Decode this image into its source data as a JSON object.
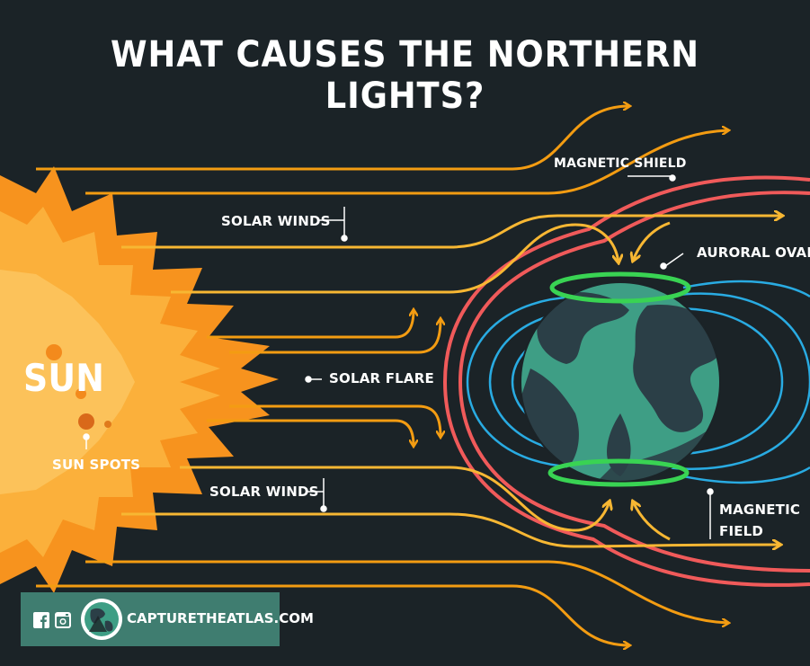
{
  "title": "WHAT CAUSES THE NORTHERN LIGHTS?",
  "labels": {
    "sun": "SUN",
    "sun_spots": "SUN SPOTS",
    "solar_winds_top": "SOLAR WINDS",
    "solar_flare": "SOLAR FLARE",
    "solar_winds_bottom": "SOLAR WINDS",
    "magnetic_shield": "MAGNETIC SHIELD",
    "auroral_oval": "AURORAL OVAL",
    "magnetic_field_1": "MAGNETIC",
    "magnetic_field_2": "FIELD"
  },
  "footer": {
    "website": "CAPTURETHEATLAS.COM",
    "icons": [
      "facebook-icon",
      "instagram-icon",
      "globe-logo-icon"
    ]
  },
  "colors": {
    "background": "#1b2327",
    "sun_orange": "#f7931e",
    "sun_yellow": "#fbb03b",
    "wind_orange": "#f39c12",
    "wind_yellow": "#f7b733",
    "shield_red": "#f05a5a",
    "field_blue": "#29abe2",
    "oval_green": "#39d353",
    "ocean": "#3e9e85",
    "land": "#2b3f47",
    "footer_green": "#3f7d70"
  }
}
